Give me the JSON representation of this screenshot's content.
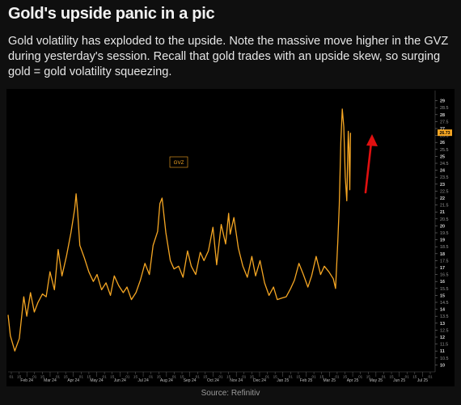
{
  "header": {
    "title": "Gold's upside panic in a pic",
    "subtitle": "Gold volatility has exploded to the upside. Note the massive move higher in the GVZ during yesterday's session. Recall that gold trades with an upside skew, so surging gold = gold volatility squeezing."
  },
  "footer": {
    "source": "Source: Refinitiv"
  },
  "colors": {
    "background": "#000000",
    "line": "#f5a623",
    "arrow": "#e01010",
    "last_value_label": "#f5a623"
  },
  "chart_data": {
    "type": "line",
    "title": "",
    "xlabel": "",
    "ylabel": "",
    "legend": {
      "entries": [
        "GVZ"
      ],
      "placement": "upper-left"
    },
    "grid": false,
    "y_axis_side": "right",
    "ylim": [
      9.5,
      29.5
    ],
    "y_ticks": [
      "10",
      "10.5",
      "11",
      "11.5",
      "12",
      "12.5",
      "13",
      "13.5",
      "14",
      "14.5",
      "15",
      "15.5",
      "16",
      "16.5",
      "17",
      "17.5",
      "18",
      "18.5",
      "19",
      "19.5",
      "20",
      "20.5",
      "21",
      "21.5",
      "22",
      "22.5",
      "23",
      "23.5",
      "24",
      "24.5",
      "25",
      "25.5",
      "26",
      "26.5",
      "27",
      "27.5",
      "28",
      "28.5",
      "29"
    ],
    "last_value_label": "26.73",
    "x_tick_labels": [
      "01",
      "15",
      "Feb 24",
      "01",
      "15",
      "Mar 24",
      "01",
      "15",
      "Apr 24",
      "01",
      "15",
      "May 24",
      "01",
      "15",
      "Jun 24",
      "01",
      "15",
      "Jul 24",
      "01",
      "15",
      "Aug 24",
      "01",
      "15",
      "Sep 24",
      "01",
      "15",
      "Oct 24",
      "01",
      "15",
      "Nov 24",
      "01",
      "15",
      "Dec 24",
      "01",
      "15",
      "Jan 25",
      "01",
      "15",
      "Feb 25",
      "01",
      "15",
      "Mar 25",
      "01",
      "15",
      "Apr 25",
      "01",
      "15",
      "May 25",
      "01",
      "15",
      "Jun 25",
      "01",
      "15",
      "Jul 25",
      "01"
    ],
    "x_start": "2024-01-15",
    "x_end": "2025-08-06",
    "series": [
      {
        "name": "GVZ",
        "x": [
          "2024-01-15",
          "2024-01-18",
          "2024-01-24",
          "2024-01-30",
          "2024-02-05",
          "2024-02-09",
          "2024-02-14",
          "2024-02-19",
          "2024-02-24",
          "2024-03-01",
          "2024-03-06",
          "2024-03-11",
          "2024-03-17",
          "2024-03-22",
          "2024-03-27",
          "2024-04-02",
          "2024-04-08",
          "2024-04-13",
          "2024-04-15",
          "2024-04-17",
          "2024-04-20",
          "2024-04-26",
          "2024-05-02",
          "2024-05-08",
          "2024-05-13",
          "2024-05-19",
          "2024-05-25",
          "2024-05-31",
          "2024-06-05",
          "2024-06-11",
          "2024-06-17",
          "2024-06-22",
          "2024-06-28",
          "2024-07-04",
          "2024-07-10",
          "2024-07-16",
          "2024-07-22",
          "2024-07-27",
          "2024-08-02",
          "2024-08-05",
          "2024-08-08",
          "2024-08-13",
          "2024-08-19",
          "2024-08-24",
          "2024-08-30",
          "2024-09-05",
          "2024-09-11",
          "2024-09-16",
          "2024-09-22",
          "2024-09-28",
          "2024-10-03",
          "2024-10-09",
          "2024-10-15",
          "2024-10-20",
          "2024-10-26",
          "2024-11-01",
          "2024-11-05",
          "2024-11-07",
          "2024-11-12",
          "2024-11-18",
          "2024-11-24",
          "2024-11-30",
          "2024-12-06",
          "2024-12-11",
          "2024-12-17",
          "2024-12-23",
          "2024-12-29",
          "2025-01-04",
          "2025-01-09",
          "2025-01-15",
          "2025-01-21",
          "2025-01-27",
          "2025-02-01",
          "2025-02-07",
          "2025-02-13",
          "2025-02-19",
          "2025-02-24",
          "2025-03-02",
          "2025-03-08",
          "2025-03-13",
          "2025-03-19",
          "2025-03-25",
          "2025-03-28",
          "2025-03-31",
          "2025-04-02",
          "2025-04-04",
          "2025-04-06",
          "2025-04-08",
          "2025-04-10",
          "2025-04-12",
          "2025-04-14",
          "2025-04-15",
          "2025-04-16",
          "2025-04-17"
        ],
        "values": [
          13.6,
          12.1,
          11.0,
          11.9,
          14.9,
          13.5,
          15.2,
          13.8,
          14.5,
          15.1,
          14.9,
          16.7,
          15.4,
          18.3,
          16.4,
          17.8,
          19.5,
          21.2,
          22.3,
          21.0,
          18.6,
          17.7,
          16.7,
          16.0,
          16.5,
          15.4,
          15.9,
          15.0,
          16.4,
          15.7,
          15.2,
          15.6,
          14.7,
          15.2,
          16.1,
          17.3,
          16.5,
          18.6,
          19.6,
          21.6,
          22.0,
          19.5,
          17.5,
          16.9,
          17.1,
          16.3,
          18.2,
          17.1,
          16.5,
          18.1,
          17.5,
          18.2,
          19.9,
          17.2,
          20.1,
          18.7,
          20.9,
          19.4,
          20.6,
          18.4,
          17.1,
          16.3,
          17.8,
          16.4,
          17.5,
          15.9,
          15.0,
          15.6,
          14.7,
          14.8,
          14.9,
          15.5,
          16.1,
          17.3,
          16.5,
          15.6,
          16.4,
          17.8,
          16.5,
          17.1,
          16.7,
          16.2,
          15.5,
          18.9,
          21.5,
          26.0,
          28.4,
          27.1,
          23.5,
          21.8,
          26.8,
          25.6,
          22.6,
          26.7
        ]
      }
    ],
    "annotation": {
      "type": "arrow",
      "direction": "up",
      "color": "#e01010"
    }
  }
}
